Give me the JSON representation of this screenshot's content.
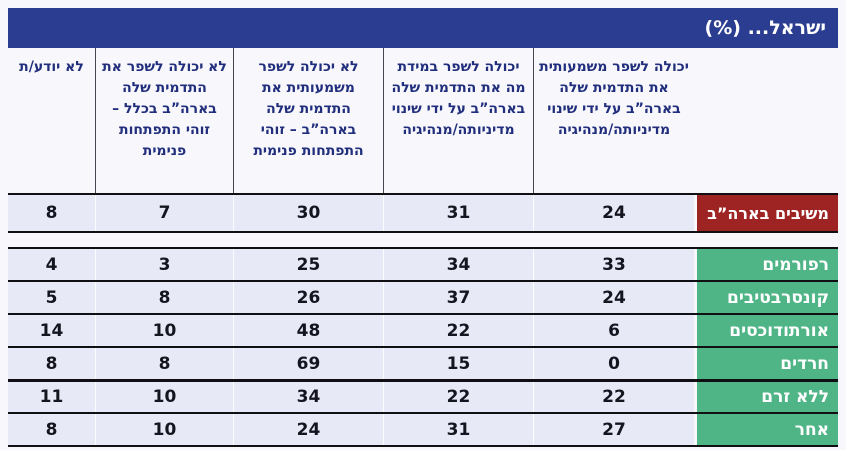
{
  "title_bar": {
    "title": "ישראל... (%)"
  },
  "chart_data": {
    "type": "table",
    "title": "ישראל... (%)",
    "column_order": "rtl (first column is rightmost)",
    "columns": [
      "יכולה לשפר משמעותית את התדמית שלה בארה”ב על ידי שינוי מדיניותה/מנהיגיה",
      "יכולה לשפר במידת מה את התדמית שלה בארה”ב על ידי שינוי מדיניותה/מנהיגיה",
      "לא יכולה לשפר משמעותית את התדמית שלה בארה”ב – זוהי התפתחות פנימית",
      "לא יכולה לשפר את התדמית שלה בארה”ב בכלל – זוהי התפתחות פנימית",
      "לא יודע/ת"
    ],
    "rows": [
      {
        "label": "משיבים בארה”ב",
        "emphasis": "red",
        "values": [
          24,
          31,
          30,
          7,
          8
        ]
      },
      {
        "label": "רפורמים",
        "emphasis": "green",
        "values": [
          33,
          34,
          25,
          3,
          4
        ]
      },
      {
        "label": "קונסרבטיבים",
        "emphasis": "green",
        "values": [
          24,
          37,
          26,
          8,
          5
        ]
      },
      {
        "label": "אורתודוכסים",
        "emphasis": "green",
        "values": [
          6,
          22,
          48,
          10,
          14
        ]
      },
      {
        "label": "חרדים",
        "emphasis": "green",
        "values": [
          0,
          15,
          69,
          8,
          8
        ]
      },
      {
        "label": "ללא זרם",
        "emphasis": "green",
        "values": [
          22,
          22,
          34,
          10,
          11
        ]
      },
      {
        "label": "אחר",
        "emphasis": "green",
        "values": [
          27,
          31,
          24,
          10,
          8
        ]
      }
    ],
    "colors": {
      "header_blue": "#2b3d91",
      "highlight_red": "#9e2423",
      "group_green": "#4fb586",
      "cell_bg": "#e7e9f7",
      "page_bg": "#f7f7fc",
      "line": "#101014",
      "header_text": "#202e7c",
      "value_text": "#15151f"
    }
  }
}
